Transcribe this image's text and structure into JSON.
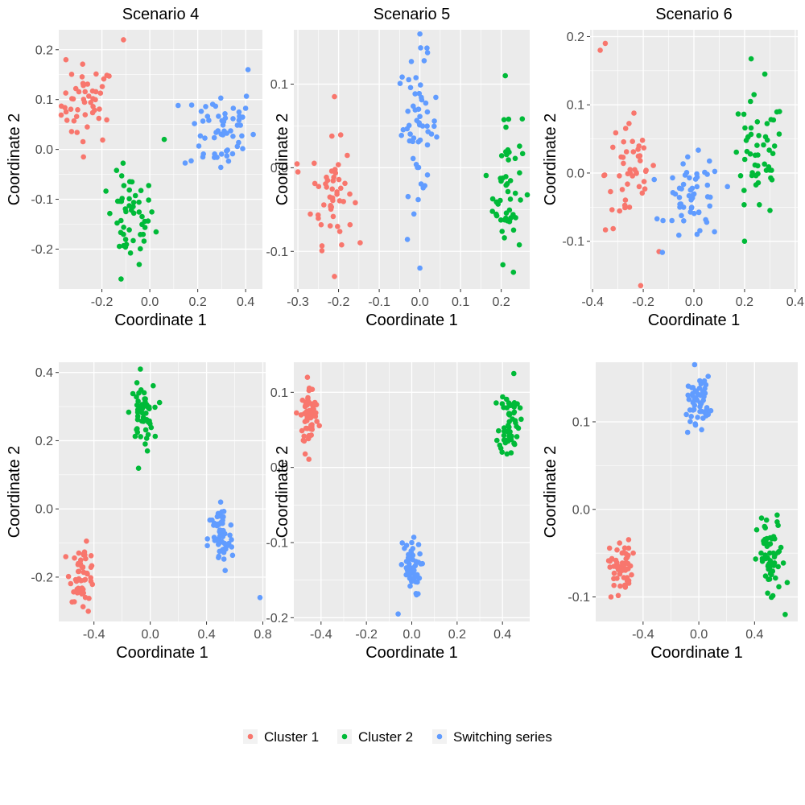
{
  "legend": {
    "entries": [
      {
        "label": "Cluster 1",
        "color": "#F8766D"
      },
      {
        "label": "Cluster 2",
        "color": "#00BA38"
      },
      {
        "label": "Switching series",
        "color": "#619CFF"
      }
    ]
  },
  "chart_data": [
    {
      "type": "scatter",
      "title": "Scenario 4",
      "xlabel": "Coordinate 1",
      "ylabel": "Coordinate 2",
      "xlim": [
        -0.38,
        0.47
      ],
      "ylim": [
        -0.28,
        0.24
      ],
      "xticks": [
        {
          "v": -0.2,
          "label": "-0.2"
        },
        {
          "v": 0.0,
          "label": "0.0"
        },
        {
          "v": 0.2,
          "label": "0.2"
        },
        {
          "v": 0.4,
          "label": "0.4"
        }
      ],
      "yticks": [
        {
          "v": -0.2,
          "label": "-0.2"
        },
        {
          "v": -0.1,
          "label": "-0.1"
        },
        {
          "v": 0.0,
          "label": "0.0"
        },
        {
          "v": 0.1,
          "label": "0.1"
        },
        {
          "v": 0.2,
          "label": "0.2"
        }
      ],
      "series": [
        {
          "name": "Cluster 1",
          "cx": -0.26,
          "cy": 0.09,
          "sx": 0.055,
          "sy": 0.04,
          "n": 48,
          "extra": [
            [
              -0.11,
              0.22
            ],
            [
              -0.35,
              0.18
            ]
          ]
        },
        {
          "name": "Cluster 2",
          "cx": -0.08,
          "cy": -0.14,
          "sx": 0.05,
          "sy": 0.045,
          "n": 52,
          "extra": [
            [
              0.06,
              0.02
            ],
            [
              -0.12,
              -0.26
            ]
          ]
        },
        {
          "name": "Switching series",
          "cx": 0.29,
          "cy": 0.04,
          "sx": 0.075,
          "sy": 0.045,
          "n": 58,
          "extra": [
            [
              0.41,
              0.16
            ]
          ]
        }
      ]
    },
    {
      "type": "scatter",
      "title": "Scenario 5",
      "xlabel": "Coordinate 1",
      "ylabel": "Coordinate 2",
      "xlim": [
        -0.31,
        0.27
      ],
      "ylim": [
        -0.145,
        0.165
      ],
      "xticks": [
        {
          "v": -0.3,
          "label": "-0.3"
        },
        {
          "v": -0.2,
          "label": "-0.2"
        },
        {
          "v": -0.1,
          "label": "-0.1"
        },
        {
          "v": 0.0,
          "label": "0.0"
        },
        {
          "v": 0.1,
          "label": "0.1"
        },
        {
          "v": 0.2,
          "label": "0.2"
        }
      ],
      "yticks": [
        {
          "v": -0.1,
          "label": "-0.1"
        },
        {
          "v": 0.0,
          "label": "0.0"
        },
        {
          "v": 0.1,
          "label": "0.1"
        }
      ],
      "series": [
        {
          "name": "Cluster 1",
          "cx": -0.215,
          "cy": -0.03,
          "sx": 0.025,
          "sy": 0.03,
          "n": 48,
          "extra": [
            [
              -0.21,
              0.085
            ],
            [
              -0.21,
              -0.13
            ],
            [
              -0.3,
              -0.005
            ]
          ]
        },
        {
          "name": "Cluster 2",
          "cx": 0.215,
          "cy": -0.02,
          "sx": 0.018,
          "sy": 0.045,
          "n": 52,
          "extra": [
            [
              0.21,
              0.11
            ],
            [
              0.23,
              -0.125
            ]
          ]
        },
        {
          "name": "Switching series",
          "cx": -0.005,
          "cy": 0.05,
          "sx": 0.025,
          "sy": 0.04,
          "n": 56,
          "extra": [
            [
              0.0,
              0.16
            ],
            [
              0.0,
              -0.12
            ]
          ]
        }
      ]
    },
    {
      "type": "scatter",
      "title": "Scenario 6",
      "xlabel": "Coordinate 1",
      "ylabel": "Coordinate 2",
      "xlim": [
        -0.41,
        0.41
      ],
      "ylim": [
        -0.17,
        0.21
      ],
      "xticks": [
        {
          "v": -0.4,
          "label": "-0.4"
        },
        {
          "v": -0.2,
          "label": "-0.2"
        },
        {
          "v": 0.0,
          "label": "0.0"
        },
        {
          "v": 0.2,
          "label": "0.2"
        },
        {
          "v": 0.4,
          "label": "0.4"
        }
      ],
      "yticks": [
        {
          "v": -0.1,
          "label": "-0.1"
        },
        {
          "v": 0.0,
          "label": "0.0"
        },
        {
          "v": 0.1,
          "label": "0.1"
        },
        {
          "v": 0.2,
          "label": "0.2"
        }
      ],
      "series": [
        {
          "name": "Cluster 1",
          "cx": -0.25,
          "cy": 0.0,
          "sx": 0.05,
          "sy": 0.045,
          "n": 48,
          "extra": [
            [
              -0.35,
              0.19
            ],
            [
              -0.37,
              0.18
            ],
            [
              -0.21,
              -0.165
            ]
          ]
        },
        {
          "name": "Cluster 2",
          "cx": 0.25,
          "cy": 0.02,
          "sx": 0.055,
          "sy": 0.045,
          "n": 52,
          "extra": [
            [
              0.28,
              0.145
            ],
            [
              0.2,
              -0.1
            ]
          ]
        },
        {
          "name": "Switching series",
          "cx": 0.0,
          "cy": -0.04,
          "sx": 0.055,
          "sy": 0.03,
          "n": 56,
          "extra": []
        }
      ]
    },
    {
      "type": "scatter",
      "title": "",
      "xlabel": "Coordinate 1",
      "ylabel": "Coordinate 2",
      "xlim": [
        -0.65,
        0.82
      ],
      "ylim": [
        -0.33,
        0.43
      ],
      "xticks": [
        {
          "v": -0.4,
          "label": "-0.4"
        },
        {
          "v": 0.0,
          "label": "0.0"
        },
        {
          "v": 0.4,
          "label": "0.4"
        },
        {
          "v": 0.8,
          "label": "0.8"
        }
      ],
      "yticks": [
        {
          "v": -0.2,
          "label": "-0.2"
        },
        {
          "v": 0.0,
          "label": "0.0"
        },
        {
          "v": 0.2,
          "label": "0.2"
        },
        {
          "v": 0.4,
          "label": "0.4"
        }
      ],
      "series": [
        {
          "name": "Cluster 1",
          "cx": -0.48,
          "cy": -0.19,
          "sx": 0.045,
          "sy": 0.04,
          "n": 50,
          "extra": [
            [
              -0.44,
              -0.3
            ],
            [
              -0.6,
              -0.14
            ]
          ]
        },
        {
          "name": "Cluster 2",
          "cx": -0.06,
          "cy": 0.28,
          "sx": 0.04,
          "sy": 0.04,
          "n": 52,
          "extra": [
            [
              -0.07,
              0.41
            ],
            [
              -0.02,
              0.17
            ]
          ]
        },
        {
          "name": "Switching series",
          "cx": 0.5,
          "cy": -0.09,
          "sx": 0.045,
          "sy": 0.05,
          "n": 56,
          "extra": [
            [
              0.78,
              -0.26
            ],
            [
              0.5,
              0.02
            ]
          ]
        }
      ]
    },
    {
      "type": "scatter",
      "title": "",
      "xlabel": "Coordinate 1",
      "ylabel": "Coordinate 2",
      "xlim": [
        -0.52,
        0.52
      ],
      "ylim": [
        -0.205,
        0.14
      ],
      "xticks": [
        {
          "v": -0.4,
          "label": "-0.4"
        },
        {
          "v": -0.2,
          "label": "-0.2"
        },
        {
          "v": 0.0,
          "label": "0.0"
        },
        {
          "v": 0.2,
          "label": "0.2"
        },
        {
          "v": 0.4,
          "label": "0.4"
        }
      ],
      "yticks": [
        {
          "v": -0.2,
          "label": "-0.2"
        },
        {
          "v": -0.1,
          "label": "-0.1"
        },
        {
          "v": 0.0,
          "label": "0.0"
        },
        {
          "v": 0.1,
          "label": "0.1"
        }
      ],
      "series": [
        {
          "name": "Cluster 1",
          "cx": -0.45,
          "cy": 0.068,
          "sx": 0.02,
          "sy": 0.02,
          "n": 60,
          "extra": [
            [
              -0.46,
              0.12
            ],
            [
              -0.47,
              0.018
            ]
          ]
        },
        {
          "name": "Cluster 2",
          "cx": 0.43,
          "cy": 0.062,
          "sx": 0.022,
          "sy": 0.022,
          "n": 55,
          "extra": [
            [
              0.45,
              0.125
            ],
            [
              0.42,
              0.018
            ]
          ]
        },
        {
          "name": "Switching series",
          "cx": -0.005,
          "cy": -0.135,
          "sx": 0.022,
          "sy": 0.018,
          "n": 52,
          "extra": [
            [
              -0.06,
              -0.195
            ],
            [
              0.0,
              -0.1
            ]
          ]
        }
      ]
    },
    {
      "type": "scatter",
      "title": "",
      "xlabel": "Coordinate 1",
      "ylabel": "Coordinate 2",
      "xlim": [
        -0.74,
        0.71
      ],
      "ylim": [
        -0.128,
        0.168
      ],
      "xticks": [
        {
          "v": -0.4,
          "label": "-0.4"
        },
        {
          "v": 0.0,
          "label": "0.0"
        },
        {
          "v": 0.4,
          "label": "0.4"
        }
      ],
      "yticks": [
        {
          "v": -0.1,
          "label": "-0.1"
        },
        {
          "v": 0.0,
          "label": "0.0"
        },
        {
          "v": 0.1,
          "label": "0.1"
        }
      ],
      "series": [
        {
          "name": "Cluster 1",
          "cx": -0.56,
          "cy": -0.065,
          "sx": 0.04,
          "sy": 0.015,
          "n": 55,
          "extra": [
            [
              -0.63,
              -0.1
            ]
          ]
        },
        {
          "name": "Cluster 2",
          "cx": 0.52,
          "cy": -0.06,
          "sx": 0.05,
          "sy": 0.025,
          "n": 58,
          "extra": [
            [
              0.62,
              -0.12
            ],
            [
              0.45,
              -0.01
            ]
          ]
        },
        {
          "name": "Switching series",
          "cx": 0.0,
          "cy": 0.125,
          "sx": 0.04,
          "sy": 0.013,
          "n": 52,
          "extra": [
            [
              -0.03,
              0.168
            ],
            [
              -0.08,
              0.088
            ]
          ]
        }
      ]
    }
  ]
}
